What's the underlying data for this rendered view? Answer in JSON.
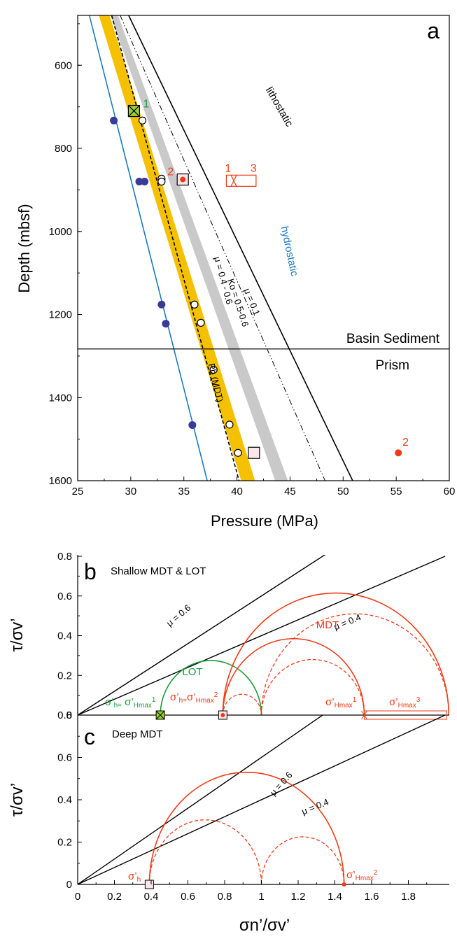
{
  "colors": {
    "hydro": "#1a7bc4",
    "band": "#f5c000",
    "gray": "#c9c9c9",
    "red": "#f03a16",
    "green": "#1a9b3a",
    "navy": "#3a3a96",
    "lime": "#9acd32",
    "pink": "#fbe6ea"
  },
  "chart_data": [
    {
      "panel": "a",
      "type": "line",
      "xlabel": "Pressure (MPa)",
      "ylabel": "Depth (mbsf)",
      "xlim": [
        25,
        60
      ],
      "ylim": [
        1600,
        480
      ],
      "xticks": [
        "25",
        "30",
        "35",
        "40",
        "45",
        "50",
        "55",
        "60"
      ],
      "yticks": [
        "600",
        "800",
        "1000",
        "1200",
        "1400",
        "1600"
      ],
      "lines": [
        {
          "id": "hydrostatic",
          "label": "hydrostatic",
          "points": [
            [
              26.1,
              480
            ],
            [
              37.2,
              1600
            ]
          ]
        },
        {
          "id": "lithostatic",
          "label": "lithostatic",
          "points": [
            [
              29.8,
              480
            ],
            [
              50.9,
              1600
            ]
          ]
        },
        {
          "id": "mu01",
          "label": "μ = 0.1",
          "points": [
            [
              29.0,
              480
            ],
            [
              48.3,
              1600
            ]
          ]
        },
        {
          "id": "pb",
          "label": "Pb (MDT)",
          "points": [
            [
              28.2,
              480
            ],
            [
              40.2,
              1600
            ]
          ]
        }
      ],
      "bands": [
        {
          "id": "mu0406",
          "label": "μ = 0.4 - 0.6",
          "left": [
            [
              27.0,
              480
            ],
            [
              40.4,
              1600
            ]
          ],
          "right": [
            [
              28.0,
              480
            ],
            [
              41.7,
              1600
            ]
          ]
        },
        {
          "id": "ko",
          "label": "Ko = 0.5-0.6",
          "left": [
            [
              28.1,
              480
            ],
            [
              43.6,
              1600
            ]
          ],
          "right": [
            [
              28.8,
              480
            ],
            [
              44.8,
              1600
            ]
          ]
        }
      ],
      "hydro_points": [
        [
          28.4,
          733
        ],
        [
          30.8,
          880
        ],
        [
          31.3,
          880
        ],
        [
          32.9,
          1176
        ],
        [
          33.3,
          1222
        ],
        [
          35.8,
          1466
        ]
      ],
      "open_points": [
        [
          31.1,
          733
        ],
        [
          32.9,
          873
        ],
        [
          32.9,
          880
        ],
        [
          36.0,
          1176
        ],
        [
          36.6,
          1220
        ],
        [
          37.8,
          1333
        ],
        [
          39.3,
          1465
        ],
        [
          40.1,
          1533
        ]
      ],
      "lot_marker": {
        "x": 30.3,
        "y": 710,
        "label": "1"
      },
      "sq_marker_2": {
        "x": 34.9,
        "y": 875,
        "label": "2"
      },
      "sq_marker_deep": {
        "x": 41.6,
        "y": 1533
      },
      "range_box": {
        "x0": 39.0,
        "x1": 41.8,
        "y": 878,
        "cross_x": 39.7,
        "label_left": "1",
        "label_right": "3"
      },
      "red_point_2": {
        "x": 55.2,
        "y": 1533,
        "label": "2"
      },
      "boundary": {
        "y": 1283,
        "upper": "Basin Sediment",
        "lower": "Prism"
      },
      "panel_label": "a"
    },
    {
      "panel": "b",
      "type": "line",
      "title": "Shallow MDT & LOT",
      "xlim": [
        0,
        2.0
      ],
      "ylim": [
        0,
        0.8
      ],
      "yticks": [
        "0",
        "0.2",
        "0.4",
        "0.6",
        "0.8"
      ],
      "ylabel": "τ/σv’",
      "friction_lines": [
        {
          "label": "μ = 0.6",
          "slope": 0.6
        },
        {
          "label": "μ = 0.4",
          "slope": 0.4
        }
      ],
      "circles": [
        {
          "group": "LOT",
          "style": "solid",
          "range": [
            0.45,
            1.0
          ]
        },
        {
          "group": "MDT",
          "style": "solid",
          "range": [
            0.79,
            1.56
          ]
        },
        {
          "group": "MDT",
          "style": "solid",
          "range": [
            0.79,
            2.02
          ]
        },
        {
          "group": "MDT",
          "style": "dashed",
          "range": [
            0.79,
            1.0
          ]
        },
        {
          "group": "MDT",
          "style": "dashed",
          "range": [
            1.0,
            1.56
          ]
        },
        {
          "group": "MDT",
          "style": "dashed",
          "range": [
            1.0,
            2.02
          ]
        }
      ],
      "lot_label": "LOT",
      "mdt_label": "MDT",
      "s_h_lot": {
        "x": 0.45,
        "pre": "σ’",
        "sub1": "h=",
        "mid": " σ’",
        "sub2": "Hmax",
        "sup": "1"
      },
      "s_h_mdt": {
        "x": 0.79,
        "pre": "σ’",
        "sub1": "h=",
        "mid": "σ’",
        "sub2": "Hmax",
        "sup": "2"
      },
      "s_hmax1": {
        "x": 1.56,
        "pre": "σ’",
        "sub": "Hmax",
        "sup": "1"
      },
      "s_hmax3": {
        "x": 2.02,
        "pre": "σ’",
        "sub": "Hmax",
        "sup": "3"
      },
      "panel_label": "b"
    },
    {
      "panel": "c",
      "type": "line",
      "title": "Deep MDT",
      "xlim": [
        0,
        2.0
      ],
      "ylim": [
        0,
        0.8
      ],
      "xticks": [
        "0",
        "0.2",
        "0.4",
        "0.6",
        "0.8",
        "1",
        "1.2",
        "1.4",
        "1.6",
        "1.8"
      ],
      "yticks": [
        "0",
        "0.2",
        "0.4",
        "0.6",
        "0.8"
      ],
      "ylabel": "τ/σv’",
      "xlabel": "σn’/σv’",
      "friction_lines": [
        {
          "label": "μ = 0.6",
          "slope": 0.6
        },
        {
          "label": "μ = 0.4",
          "slope": 0.4
        }
      ],
      "circles": [
        {
          "style": "solid",
          "range": [
            0.39,
            1.45
          ]
        },
        {
          "style": "dashed",
          "range": [
            0.39,
            1.0
          ]
        },
        {
          "style": "dashed",
          "range": [
            1.0,
            1.45
          ]
        }
      ],
      "s_h": {
        "x": 0.39,
        "pre": "σ’",
        "sub": "h"
      },
      "s_hmax2": {
        "x": 1.45,
        "pre": "σ’",
        "sub": "Hmax",
        "sup": "2"
      },
      "panel_label": "c"
    }
  ]
}
